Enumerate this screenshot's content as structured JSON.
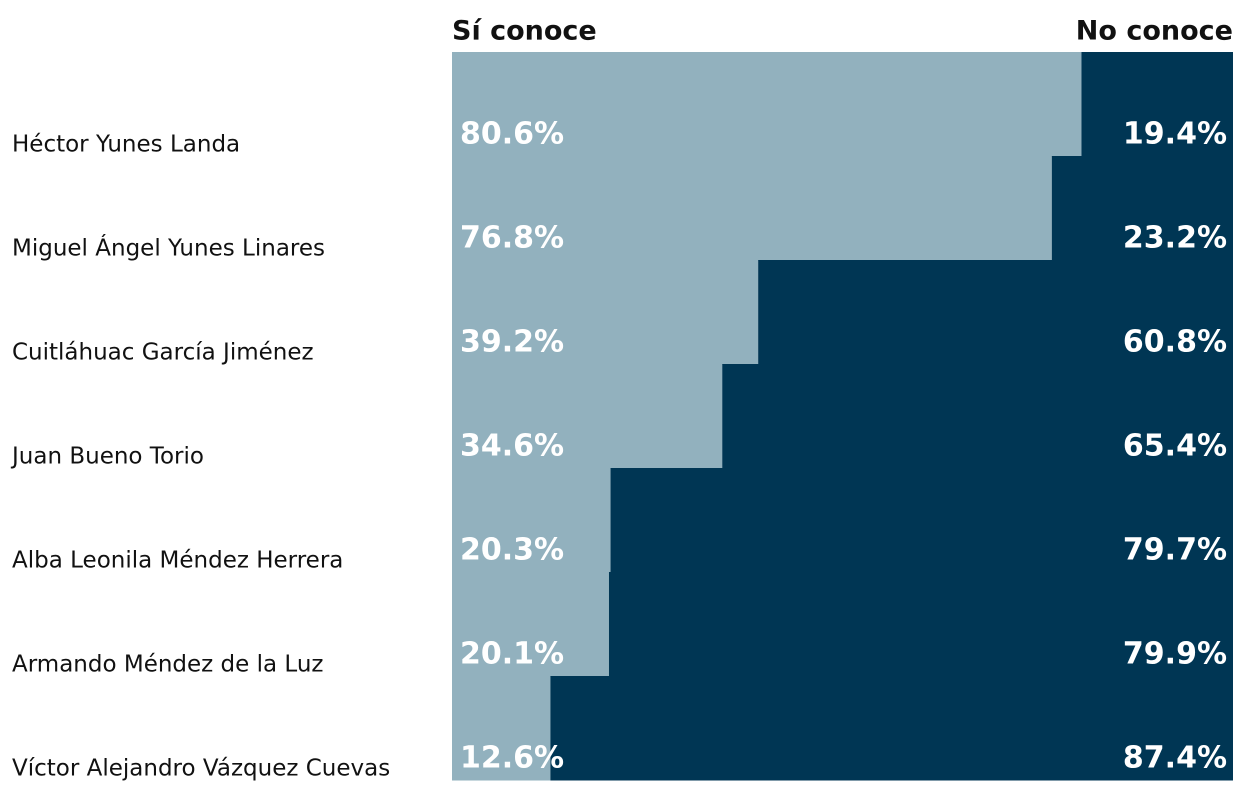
{
  "chart_data": {
    "type": "bar",
    "orientation": "horizontal",
    "stacked": true,
    "categories": [
      "Héctor Yunes Landa",
      "Miguel Ángel Yunes Linares",
      "Cuitláhuac García Jiménez",
      "Juan Bueno Torio",
      "Alba Leonila Méndez Herrera",
      "Armando Méndez de la Luz",
      "Víctor Alejandro Vázquez Cuevas"
    ],
    "series": [
      {
        "name": "Sí conoce",
        "color": "#92b1be",
        "values": [
          80.6,
          76.8,
          39.2,
          34.6,
          20.3,
          20.1,
          12.6
        ],
        "value_labels": [
          "80.6%",
          "76.8%",
          "39.2%",
          "34.6%",
          "20.3%",
          "20.1%",
          "12.6%"
        ]
      },
      {
        "name": "No conoce",
        "color": "#003654",
        "values": [
          19.4,
          23.2,
          60.8,
          65.4,
          79.7,
          79.9,
          87.4
        ],
        "value_labels": [
          "19.4%",
          "23.2%",
          "60.8%",
          "65.4%",
          "79.7%",
          "79.9%",
          "87.4%"
        ]
      }
    ],
    "xlim": [
      0,
      100
    ]
  }
}
